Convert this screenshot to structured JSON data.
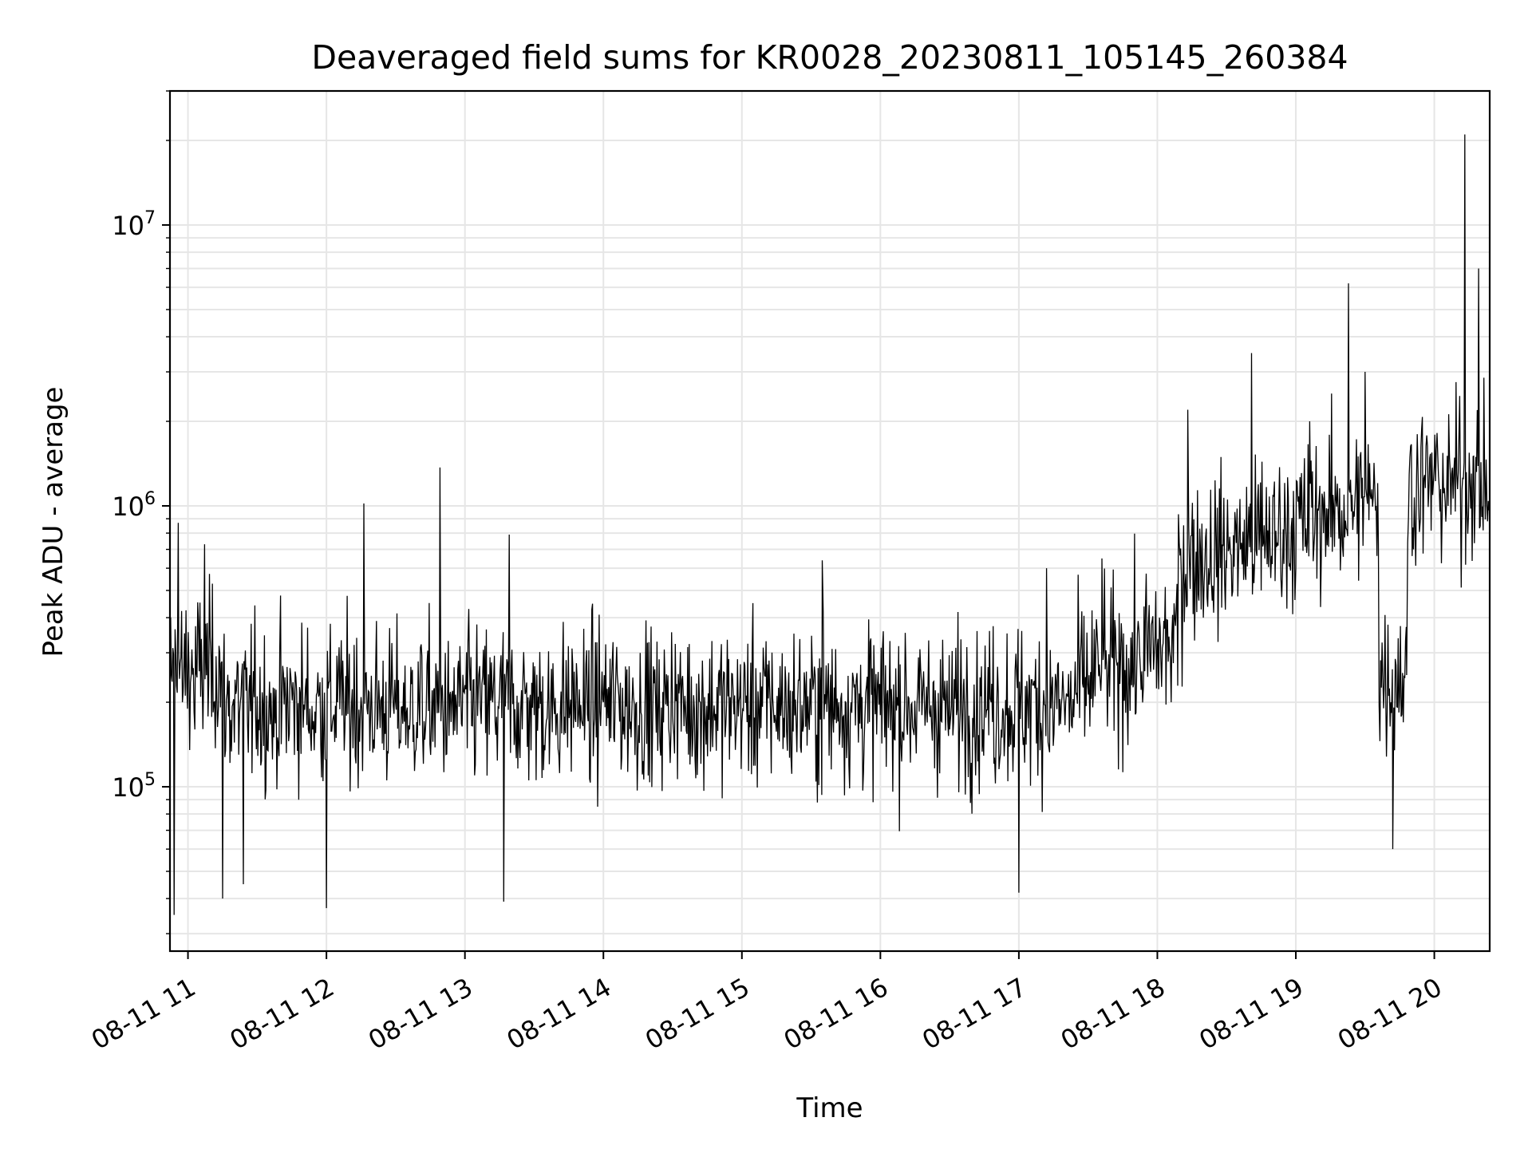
{
  "chart_data": {
    "type": "line",
    "title": "Deaveraged field sums for KR0028_20230811_105145_260384",
    "xlabel": "Time",
    "ylabel": "Peak ADU - average",
    "yscale": "log",
    "ylim": [
      26000,
      30000000
    ],
    "xlim_hours": [
      10.87,
      20.4
    ],
    "grid": true,
    "line_color": "#000000",
    "x_ticks": [
      {
        "hour": 11,
        "label": "08-11 11"
      },
      {
        "hour": 12,
        "label": "08-11 12"
      },
      {
        "hour": 13,
        "label": "08-11 13"
      },
      {
        "hour": 14,
        "label": "08-11 14"
      },
      {
        "hour": 15,
        "label": "08-11 15"
      },
      {
        "hour": 16,
        "label": "08-11 16"
      },
      {
        "hour": 17,
        "label": "08-11 17"
      },
      {
        "hour": 18,
        "label": "08-11 18"
      },
      {
        "hour": 19,
        "label": "08-11 19"
      },
      {
        "hour": 20,
        "label": "08-11 20"
      }
    ],
    "y_ticks": [
      {
        "value": 100000,
        "base": "10",
        "exp": "5"
      },
      {
        "value": 1000000,
        "base": "10",
        "exp": "6"
      },
      {
        "value": 10000000,
        "base": "10",
        "exp": "7"
      }
    ],
    "series": [
      {
        "name": "deaveraged field sum",
        "x": [
          10.88,
          10.9,
          10.93,
          10.96,
          11.05,
          11.12,
          11.22,
          11.25,
          11.35,
          11.4,
          11.5,
          11.62,
          11.75,
          11.8,
          11.9,
          12.0,
          12.08,
          12.2,
          12.27,
          12.4,
          12.52,
          12.6,
          12.72,
          12.82,
          12.9,
          13.0,
          13.1,
          13.2,
          13.28,
          13.32,
          13.5,
          13.62,
          13.8,
          14.0,
          14.1,
          14.2,
          14.4,
          14.5,
          14.7,
          14.9,
          15.0,
          15.2,
          15.35,
          15.5,
          15.58,
          15.7,
          15.9,
          16.0,
          16.2,
          16.3,
          16.5,
          16.6,
          16.8,
          17.0,
          17.1,
          17.2,
          17.4,
          17.55,
          17.6,
          17.8,
          17.9,
          18.0,
          18.1,
          18.22,
          18.3,
          18.4,
          18.5,
          18.6,
          18.68,
          18.75,
          18.85,
          19.0,
          19.1,
          19.2,
          19.3,
          19.38,
          19.45,
          19.5,
          19.58,
          19.7,
          19.8,
          19.85,
          19.9,
          20.0,
          20.1,
          20.18,
          20.22,
          20.28,
          20.32,
          20.38
        ],
        "y": [
          250000,
          35000,
          870000,
          200000,
          160000,
          730000,
          190000,
          40000,
          220000,
          45000,
          210000,
          150000,
          220000,
          90000,
          160000,
          37000,
          200000,
          320000,
          1020000,
          210000,
          240000,
          160000,
          180000,
          1370000,
          170000,
          230000,
          250000,
          200000,
          39000,
          790000,
          180000,
          210000,
          170000,
          200000,
          250000,
          150000,
          220000,
          180000,
          200000,
          210000,
          170000,
          230000,
          220000,
          180000,
          640000,
          200000,
          230000,
          180000,
          210000,
          180000,
          160000,
          230000,
          200000,
          42000,
          230000,
          600000,
          200000,
          210000,
          650000,
          220000,
          230000,
          320000,
          200000,
          2200000,
          460000,
          520000,
          600000,
          700000,
          3500000,
          500000,
          540000,
          600000,
          2000000,
          800000,
          1200000,
          6200000,
          1500000,
          3000000,
          1000000,
          60000,
          250000,
          700000,
          900000,
          1400000,
          1000000,
          2000000,
          21000000,
          1500000,
          7000000,
          1000000
        ]
      }
    ]
  }
}
